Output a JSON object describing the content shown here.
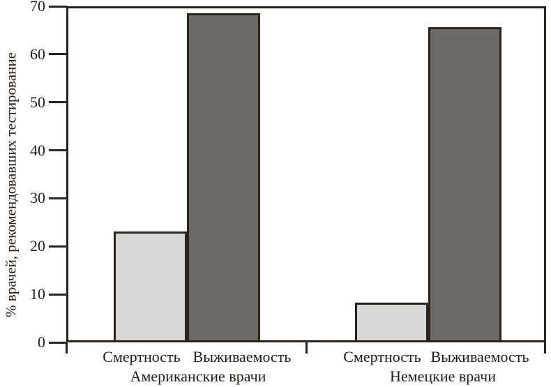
{
  "chart_data": {
    "type": "bar",
    "title": "",
    "ylabel": "% врачей, рекомендовавших тестирование",
    "xlabel": "",
    "ylim": [
      0,
      70
    ],
    "yticks": [
      0,
      10,
      20,
      30,
      40,
      50,
      60,
      70
    ],
    "categories": [
      "Американские врачи",
      "Немецкие врачи"
    ],
    "series": [
      {
        "name": "Смертность",
        "color": "#d7d7d5",
        "values": [
          23,
          8
        ]
      },
      {
        "name": "Выживаемость",
        "color": "#6d6a66",
        "values": [
          69,
          66
        ]
      }
    ],
    "grid": false,
    "legend": "none",
    "colors": {
      "line": "#2b241e",
      "text": "#241d17",
      "bar_light": "#d7d7d5",
      "bar_dark": "#6d6a66",
      "background": "#ffffff"
    }
  }
}
